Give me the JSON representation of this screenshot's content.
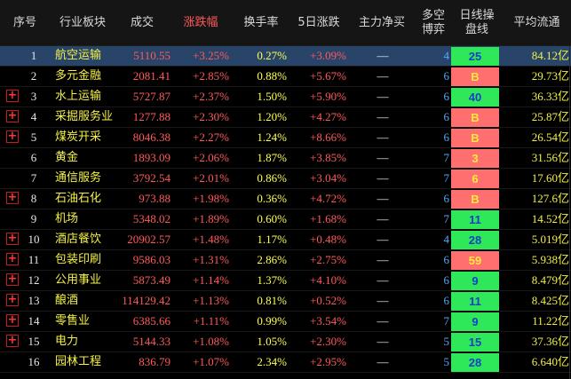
{
  "headers": {
    "index": "序号",
    "sector": "行业板块",
    "amount": "成交",
    "change": "涨跌幅",
    "turnover": "换手率",
    "change5": "5日涨跌",
    "flow": "主力净买",
    "game_line1": "多空",
    "game_line2": "博弈",
    "trend_line1": "日线操",
    "trend_line2": "盘线",
    "float": "平均流通"
  },
  "colors": {
    "up": "#ff5a5a",
    "name": "#f5f045",
    "trend_green": "#2ee85a",
    "trend_red": "#ff6f6f",
    "selected_row": "#294469",
    "game": "#56a8ff"
  },
  "icons": {
    "expand": "plus-square-icon",
    "flow_empty": "dash-icon"
  },
  "rows": [
    {
      "id": "1",
      "name": "航空运输",
      "amount": "5110.55",
      "change": "+3.25%",
      "turnover": "0.27%",
      "change5": "+3.09%",
      "flow": "—",
      "game": "4",
      "trend": "25",
      "trend_color": "green",
      "float": "84.12亿",
      "expand": false,
      "selected": true
    },
    {
      "id": "2",
      "name": "多元金融",
      "amount": "2081.41",
      "change": "+2.85%",
      "turnover": "0.88%",
      "change5": "+5.67%",
      "flow": "—",
      "game": "6",
      "trend": "B",
      "trend_color": "red",
      "float": "29.73亿",
      "expand": false,
      "selected": false
    },
    {
      "id": "3",
      "name": "水上运输",
      "amount": "5727.87",
      "change": "+2.37%",
      "turnover": "1.50%",
      "change5": "+5.90%",
      "flow": "—",
      "game": "6",
      "trend": "40",
      "trend_color": "green",
      "float": "36.33亿",
      "expand": true,
      "selected": false
    },
    {
      "id": "4",
      "name": "采掘服务业",
      "amount": "1277.88",
      "change": "+2.30%",
      "turnover": "1.20%",
      "change5": "+4.27%",
      "flow": "—",
      "game": "6",
      "trend": "B",
      "trend_color": "red",
      "float": "25.87亿",
      "expand": true,
      "selected": false
    },
    {
      "id": "5",
      "name": "煤炭开采",
      "amount": "8046.38",
      "change": "+2.27%",
      "turnover": "1.24%",
      "change5": "+8.66%",
      "flow": "—",
      "game": "6",
      "trend": "B",
      "trend_color": "red",
      "float": "26.54亿",
      "expand": true,
      "selected": false
    },
    {
      "id": "6",
      "name": "黄金",
      "amount": "1893.09",
      "change": "+2.06%",
      "turnover": "1.87%",
      "change5": "+3.85%",
      "flow": "—",
      "game": "7",
      "trend": "3",
      "trend_color": "red",
      "float": "31.56亿",
      "expand": false,
      "selected": false
    },
    {
      "id": "7",
      "name": "通信服务",
      "amount": "3792.54",
      "change": "+2.01%",
      "turnover": "0.86%",
      "change5": "+3.04%",
      "flow": "—",
      "game": "7",
      "trend": "6",
      "trend_color": "red",
      "float": "17.60亿",
      "expand": false,
      "selected": false
    },
    {
      "id": "8",
      "name": "石油石化",
      "amount": "973.88",
      "change": "+1.98%",
      "turnover": "0.36%",
      "change5": "+4.72%",
      "flow": "—",
      "game": "6",
      "trend": "B",
      "trend_color": "red",
      "float": "127.6亿",
      "expand": true,
      "selected": false
    },
    {
      "id": "9",
      "name": "机场",
      "amount": "5348.02",
      "change": "+1.89%",
      "turnover": "0.60%",
      "change5": "+1.68%",
      "flow": "—",
      "game": "7",
      "trend": "11",
      "trend_color": "green",
      "float": "14.52亿",
      "expand": false,
      "selected": false
    },
    {
      "id": "10",
      "name": "酒店餐饮",
      "amount": "20902.57",
      "change": "+1.48%",
      "turnover": "1.17%",
      "change5": "+0.48%",
      "flow": "—",
      "game": "4",
      "trend": "28",
      "trend_color": "green",
      "float": "5.019亿",
      "expand": true,
      "selected": false
    },
    {
      "id": "11",
      "name": "包装印刷",
      "amount": "9586.03",
      "change": "+1.31%",
      "turnover": "2.86%",
      "change5": "+2.75%",
      "flow": "—",
      "game": "6",
      "trend": "59",
      "trend_color": "red",
      "float": "5.938亿",
      "expand": true,
      "selected": false
    },
    {
      "id": "12",
      "name": "公用事业",
      "amount": "5873.49",
      "change": "+1.14%",
      "turnover": "1.37%",
      "change5": "+4.10%",
      "flow": "—",
      "game": "6",
      "trend": "9",
      "trend_color": "green",
      "float": "8.479亿",
      "expand": true,
      "selected": false
    },
    {
      "id": "13",
      "name": "酿酒",
      "amount": "114129.42",
      "change": "+1.13%",
      "turnover": "0.81%",
      "change5": "+0.52%",
      "flow": "—",
      "game": "6",
      "trend": "11",
      "trend_color": "green",
      "float": "8.425亿",
      "expand": true,
      "selected": false
    },
    {
      "id": "14",
      "name": "零售业",
      "amount": "6385.66",
      "change": "+1.11%",
      "turnover": "0.99%",
      "change5": "+3.54%",
      "flow": "—",
      "game": "7",
      "trend": "9",
      "trend_color": "green",
      "float": "11.22亿",
      "expand": true,
      "selected": false
    },
    {
      "id": "15",
      "name": "电力",
      "amount": "5144.33",
      "change": "+1.08%",
      "turnover": "1.05%",
      "change5": "+2.30%",
      "flow": "—",
      "game": "5",
      "trend": "15",
      "trend_color": "green",
      "float": "37.36亿",
      "expand": true,
      "selected": false
    },
    {
      "id": "16",
      "name": "园林工程",
      "amount": "836.79",
      "change": "+1.07%",
      "turnover": "2.34%",
      "change5": "+2.95%",
      "flow": "—",
      "game": "5",
      "trend": "28",
      "trend_color": "green",
      "float": "6.640亿",
      "expand": false,
      "selected": false
    }
  ]
}
